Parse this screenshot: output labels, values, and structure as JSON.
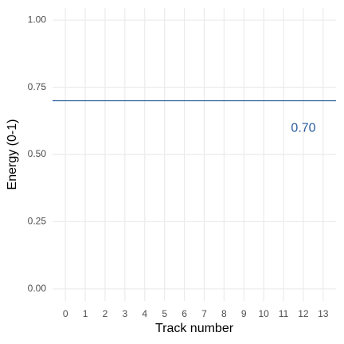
{
  "chart_data": {
    "type": "line",
    "x_label": "Track number",
    "y_label": "Energy (0-1)",
    "series": [],
    "hline": {
      "value": 0.7,
      "label": "0.70",
      "color": "#2b5c9e"
    },
    "xlim": [
      -0.65,
      13.65
    ],
    "xticks": [
      0,
      1,
      2,
      3,
      4,
      5,
      6,
      7,
      8,
      9,
      10,
      11,
      12,
      13
    ],
    "ylim": [
      -0.045,
      1.045
    ],
    "yticks": [
      {
        "value": 0,
        "label": "0.00"
      },
      {
        "value": 0.25,
        "label": "0.25"
      },
      {
        "value": 0.5,
        "label": "0.50"
      },
      {
        "value": 0.75,
        "label": "0.75"
      },
      {
        "value": 1,
        "label": "1.00"
      }
    ],
    "grid": true
  }
}
